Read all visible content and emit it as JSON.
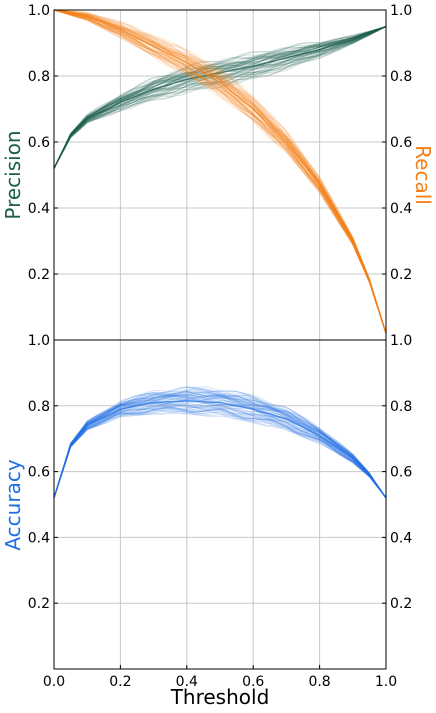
{
  "chart_data": [
    {
      "type": "line",
      "panel": "top",
      "x_range": [
        0,
        1
      ],
      "ylim": [
        0,
        1
      ],
      "grid": true,
      "xlabel": "",
      "ylabel_left": "Precision",
      "ylabel_right": "Recall",
      "left_ticks": [
        "0.2",
        "0.4",
        "0.6",
        "0.8",
        "1.0"
      ],
      "right_ticks": [
        "0.2",
        "0.4",
        "0.6",
        "0.8",
        "1.0"
      ],
      "x_ticks": [
        "0.0",
        "0.2",
        "0.4",
        "0.6",
        "0.8",
        "1.0"
      ],
      "series": [
        {
          "colorHex": "#1b5e4b",
          "x": [
            0.0,
            0.05,
            0.1,
            0.2,
            0.3,
            0.4,
            0.5,
            0.6,
            0.7,
            0.8,
            0.9,
            0.95,
            1.0
          ],
          "y": [
            0.52,
            0.62,
            0.67,
            0.72,
            0.76,
            0.79,
            0.81,
            0.83,
            0.855,
            0.88,
            0.91,
            0.93,
            0.95
          ]
        },
        {
          "colorHex": "#f57f17",
          "x": [
            0.0,
            0.1,
            0.2,
            0.3,
            0.4,
            0.5,
            0.6,
            0.7,
            0.8,
            0.9,
            0.95,
            1.0
          ],
          "y": [
            1.0,
            0.98,
            0.94,
            0.89,
            0.84,
            0.78,
            0.7,
            0.6,
            0.47,
            0.3,
            0.18,
            0.02
          ]
        }
      ],
      "bundle_size": 60
    },
    {
      "type": "line",
      "panel": "bottom",
      "x_range": [
        0,
        1
      ],
      "ylim": [
        0,
        1
      ],
      "grid": true,
      "xlabel": "Threshold",
      "ylabel_left": "Accuracy",
      "left_ticks": [
        "0.2",
        "0.4",
        "0.6",
        "0.8",
        "1.0"
      ],
      "right_ticks": [
        "0.2",
        "0.4",
        "0.6",
        "0.8",
        "1.0"
      ],
      "x_ticks": [
        "0.0",
        "0.2",
        "0.4",
        "0.6",
        "0.8",
        "1.0"
      ],
      "series": [
        {
          "colorHex": "#1f6fe5",
          "x": [
            0.0,
            0.05,
            0.1,
            0.2,
            0.3,
            0.4,
            0.5,
            0.6,
            0.7,
            0.8,
            0.9,
            0.95,
            1.0
          ],
          "y": [
            0.52,
            0.68,
            0.74,
            0.79,
            0.81,
            0.815,
            0.81,
            0.79,
            0.76,
            0.71,
            0.64,
            0.59,
            0.52
          ]
        }
      ],
      "bundle_size": 60
    }
  ]
}
